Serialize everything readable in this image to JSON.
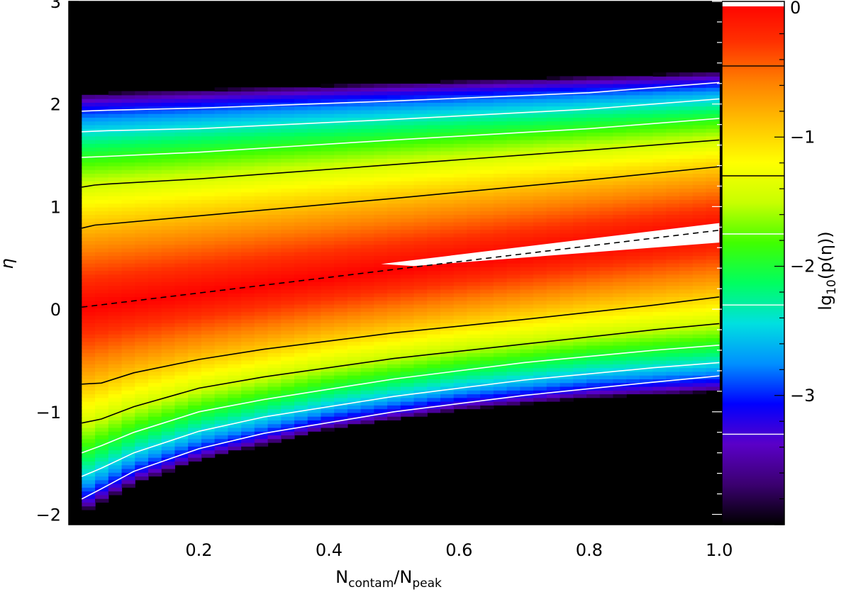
{
  "chart_data": {
    "type": "heatmap",
    "title": "",
    "xlabel": {
      "base": "N",
      "sub1": "contam",
      "slash": "/",
      "base2": "N",
      "sub2": "peak"
    },
    "ylabel": "η",
    "colorbar_label": {
      "prefix": "lg",
      "sub": "10",
      "body": "(p(η))"
    },
    "xlim": [
      0.0,
      1.1
    ],
    "ylim": [
      -2.1,
      3.0
    ],
    "x_tick_labels": [
      "0.2",
      "0.4",
      "0.6",
      "0.8",
      "1.0"
    ],
    "x_tick_values": [
      0.2,
      0.4,
      0.6,
      0.8,
      1.0
    ],
    "y_tick_labels": [
      "−2",
      "−1",
      "0",
      "1",
      "2",
      "3"
    ],
    "y_tick_values": [
      -2,
      -1,
      0,
      1,
      2,
      3
    ],
    "colorbar_range": [
      -4.0,
      0.05
    ],
    "colorbar_tick_labels": [
      "−3",
      "−2",
      "−1",
      "0"
    ],
    "colorbar_tick_values": [
      -3,
      -2,
      -1,
      0
    ],
    "colormap": [
      "#000000",
      "#3b0070",
      "#5a00c8",
      "#0000ff",
      "#0090ff",
      "#00e0e0",
      "#00ff60",
      "#40ff00",
      "#c8ff00",
      "#ffff00",
      "#ffc000",
      "#ff8000",
      "#ff3000",
      "#ff0000"
    ],
    "colorbar_contour_levels": [
      {
        "value": -3.3,
        "color": "white"
      },
      {
        "value": -2.3,
        "color": "white"
      },
      {
        "value": -1.75,
        "color": "white"
      },
      {
        "value": -1.3,
        "color": "black"
      },
      {
        "value": -0.45,
        "color": "black"
      }
    ],
    "dashed_line": {
      "x": [
        0.02,
        1.0
      ],
      "y": [
        0.02,
        0.77
      ]
    },
    "saturated_region_color": "#ffffff",
    "saturated_region": [
      [
        0.48,
        0.44
      ],
      [
        1.0,
        0.84
      ],
      [
        1.0,
        0.65
      ],
      [
        0.53,
        0.42
      ]
    ],
    "contours": [
      {
        "level": "white-upper-3",
        "color": "white",
        "x": [
          0.02,
          0.06,
          0.2,
          0.5,
          0.8,
          1.0
        ],
        "y": [
          1.93,
          1.94,
          1.96,
          2.03,
          2.11,
          2.21
        ]
      },
      {
        "level": "white-upper-2",
        "color": "white",
        "x": [
          0.02,
          0.06,
          0.2,
          0.5,
          0.8,
          1.0
        ],
        "y": [
          1.73,
          1.74,
          1.76,
          1.85,
          1.95,
          2.05
        ]
      },
      {
        "level": "white-upper-1",
        "color": "white",
        "x": [
          0.02,
          0.06,
          0.2,
          0.5,
          0.8,
          1.0
        ],
        "y": [
          1.48,
          1.49,
          1.53,
          1.65,
          1.76,
          1.86
        ]
      },
      {
        "level": "black-upper-2",
        "color": "black",
        "x": [
          0.02,
          0.04,
          0.06,
          0.2,
          0.5,
          0.8,
          1.0
        ],
        "y": [
          1.19,
          1.21,
          1.22,
          1.27,
          1.41,
          1.55,
          1.65
        ]
      },
      {
        "level": "black-upper-1",
        "color": "black",
        "x": [
          0.02,
          0.04,
          0.06,
          0.2,
          0.5,
          0.8,
          1.0
        ],
        "y": [
          0.79,
          0.82,
          0.83,
          0.91,
          1.08,
          1.26,
          1.39
        ]
      },
      {
        "level": "black-lower-1",
        "color": "black",
        "x": [
          0.02,
          0.05,
          0.1,
          0.2,
          0.3,
          0.5,
          0.7,
          0.9,
          1.0
        ],
        "y": [
          -0.73,
          -0.72,
          -0.62,
          -0.49,
          -0.39,
          -0.23,
          -0.1,
          0.04,
          0.12
        ]
      },
      {
        "level": "black-lower-2",
        "color": "black",
        "x": [
          0.02,
          0.05,
          0.1,
          0.2,
          0.3,
          0.5,
          0.7,
          0.9,
          1.0
        ],
        "y": [
          -1.11,
          -1.07,
          -0.95,
          -0.77,
          -0.66,
          -0.48,
          -0.34,
          -0.2,
          -0.14
        ]
      },
      {
        "level": "white-lower-1",
        "color": "white",
        "x": [
          0.02,
          0.05,
          0.1,
          0.2,
          0.3,
          0.5,
          0.7,
          0.9,
          1.0
        ],
        "y": [
          -1.4,
          -1.33,
          -1.2,
          -1.0,
          -0.88,
          -0.68,
          -0.52,
          -0.4,
          -0.35
        ]
      },
      {
        "level": "white-lower-2",
        "color": "white",
        "x": [
          0.02,
          0.05,
          0.1,
          0.2,
          0.3,
          0.5,
          0.7,
          0.9,
          1.0
        ],
        "y": [
          -1.63,
          -1.55,
          -1.4,
          -1.19,
          -1.05,
          -0.85,
          -0.69,
          -0.57,
          -0.52
        ]
      },
      {
        "level": "white-lower-3",
        "color": "white",
        "x": [
          0.02,
          0.05,
          0.1,
          0.2,
          0.3,
          0.5,
          0.7,
          0.9,
          1.0
        ],
        "y": [
          -1.85,
          -1.75,
          -1.58,
          -1.36,
          -1.21,
          -1.0,
          -0.84,
          -0.71,
          -0.65
        ]
      }
    ],
    "density_model": {
      "note_free": true,
      "mean_line": {
        "x": [
          0.02,
          1.0
        ],
        "y": [
          0.02,
          0.77
        ]
      },
      "upper_edge": {
        "x": [
          0.02,
          1.0
        ],
        "y": [
          2.1,
          2.31
        ]
      },
      "lower_edge": {
        "x": [
          0.02,
          0.1,
          0.2,
          0.4,
          0.6,
          0.8,
          1.0
        ],
        "y": [
          -1.98,
          -1.7,
          -1.47,
          -1.17,
          -0.98,
          -0.86,
          -0.8
        ]
      }
    }
  }
}
